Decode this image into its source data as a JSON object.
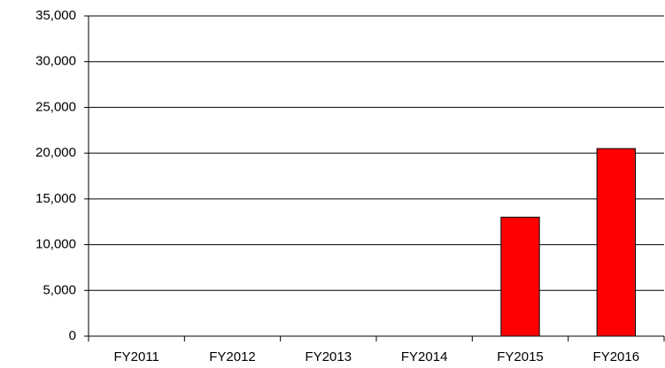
{
  "chart_data": {
    "type": "bar",
    "categories": [
      "FY2011",
      "FY2012",
      "FY2013",
      "FY2014",
      "FY2015",
      "FY2016"
    ],
    "values": [
      0,
      0,
      0,
      0,
      13000,
      20500
    ],
    "color": "#ff0000",
    "ylim": [
      0,
      35000
    ],
    "yticks": [
      0,
      {
        "value": 5000,
        "label": "5,000"
      },
      {
        "value": 10000,
        "label": "10,000"
      },
      {
        "value": 15000,
        "label": "15,000"
      },
      {
        "value": 20000,
        "label": "20,000"
      },
      {
        "value": 25000,
        "label": "25,000"
      },
      {
        "value": 30000,
        "label": "30,000"
      },
      {
        "value": 35000,
        "label": "35,000"
      }
    ],
    "grid": true
  }
}
